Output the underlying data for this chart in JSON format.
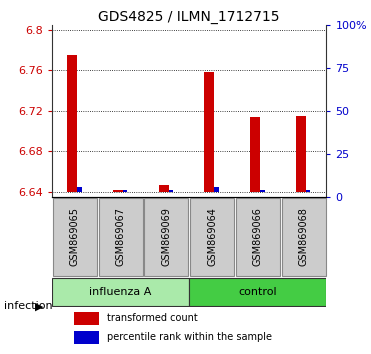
{
  "title": "GDS4825 / ILMN_1712715",
  "samples": [
    "GSM869065",
    "GSM869067",
    "GSM869069",
    "GSM869064",
    "GSM869066",
    "GSM869068"
  ],
  "red_values": [
    6.775,
    6.642,
    6.646,
    6.758,
    6.714,
    6.715
  ],
  "blue_heights": [
    0.004,
    0.002,
    0.002,
    0.004,
    0.002,
    0.002
  ],
  "ylim_left": [
    6.635,
    6.805
  ],
  "yticks_left": [
    6.64,
    6.68,
    6.72,
    6.76,
    6.8
  ],
  "ytick_labels_left": [
    "6.64",
    "6.68",
    "6.72",
    "6.76",
    "6.8"
  ],
  "yticks_right_pct": [
    0,
    25,
    50,
    75,
    100
  ],
  "ytick_labels_right": [
    "0",
    "25",
    "50",
    "75",
    "100%"
  ],
  "groups": [
    {
      "label": "influenza A",
      "indices": [
        0,
        1,
        2
      ],
      "color": "#aaeaaa"
    },
    {
      "label": "control",
      "indices": [
        3,
        4,
        5
      ],
      "color": "#44cc44"
    }
  ],
  "infection_label": "infection",
  "red_color": "#cc0000",
  "blue_color": "#0000cc",
  "baseline": 6.64,
  "bg_color": "#ffffff",
  "title_fontsize": 10,
  "axis_fontsize": 8,
  "sample_fontsize": 7,
  "legend_label_red": "transformed count",
  "legend_label_blue": "percentile rank within the sample",
  "gray_box_color": "#cccccc",
  "gray_box_border": "#888888"
}
